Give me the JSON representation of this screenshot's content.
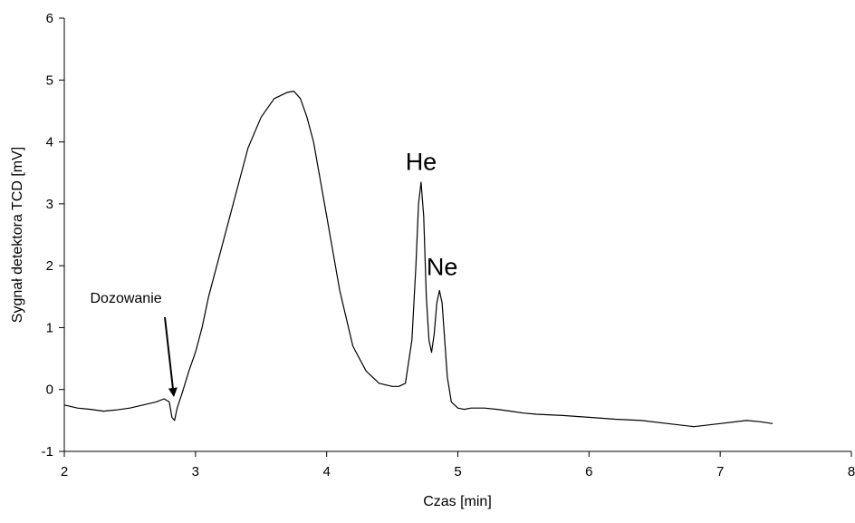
{
  "chart_data": {
    "type": "line",
    "title": "",
    "xlabel": "Czas [min]",
    "ylabel": "Sygnał detektora TCD [mV]",
    "xlim": [
      2,
      8
    ],
    "ylim": [
      -1,
      6
    ],
    "xticks": [
      2,
      3,
      4,
      5,
      6,
      7,
      8
    ],
    "yticks": [
      -1,
      0,
      1,
      2,
      3,
      4,
      5,
      6
    ],
    "grid": false,
    "legend": "none",
    "line_color": "#000000",
    "series": [
      {
        "x": [
          2.0,
          2.1,
          2.2,
          2.3,
          2.4,
          2.5,
          2.6,
          2.7,
          2.76,
          2.8,
          2.82,
          2.84,
          2.86,
          2.9,
          2.95,
          3.0,
          3.05,
          3.1,
          3.2,
          3.3,
          3.4,
          3.5,
          3.6,
          3.7,
          3.75,
          3.8,
          3.85,
          3.9,
          4.0,
          4.1,
          4.2,
          4.3,
          4.4,
          4.5,
          4.55,
          4.6,
          4.65,
          4.68,
          4.7,
          4.72,
          4.74,
          4.76,
          4.78,
          4.8,
          4.82,
          4.84,
          4.86,
          4.88,
          4.9,
          4.92,
          4.95,
          5.0,
          5.05,
          5.1,
          5.2,
          5.3,
          5.4,
          5.5,
          5.6,
          5.8,
          6.0,
          6.2,
          6.4,
          6.6,
          6.8,
          7.0,
          7.2,
          7.3,
          7.4
        ],
        "y": [
          -0.25,
          -0.3,
          -0.32,
          -0.35,
          -0.33,
          -0.3,
          -0.25,
          -0.2,
          -0.15,
          -0.2,
          -0.45,
          -0.5,
          -0.3,
          -0.05,
          0.3,
          0.6,
          1.0,
          1.5,
          2.3,
          3.1,
          3.9,
          4.4,
          4.7,
          4.8,
          4.82,
          4.7,
          4.4,
          4.0,
          2.8,
          1.6,
          0.7,
          0.3,
          0.1,
          0.05,
          0.05,
          0.1,
          0.8,
          2.0,
          3.0,
          3.35,
          2.8,
          1.5,
          0.8,
          0.6,
          0.9,
          1.4,
          1.6,
          1.4,
          0.8,
          0.2,
          -0.2,
          -0.3,
          -0.32,
          -0.3,
          -0.3,
          -0.32,
          -0.35,
          -0.38,
          -0.4,
          -0.42,
          -0.45,
          -0.48,
          -0.5,
          -0.55,
          -0.6,
          -0.55,
          -0.5,
          -0.52,
          -0.55
        ]
      }
    ],
    "annotations": [
      {
        "text": "He",
        "x": 4.72,
        "y": 3.55
      },
      {
        "text": "Ne",
        "x": 4.88,
        "y": 1.85
      },
      {
        "text": "Dozowanie",
        "x": 2.47,
        "y": 1.4,
        "arrow_to": {
          "x": 2.82,
          "y": -0.15
        }
      }
    ]
  }
}
